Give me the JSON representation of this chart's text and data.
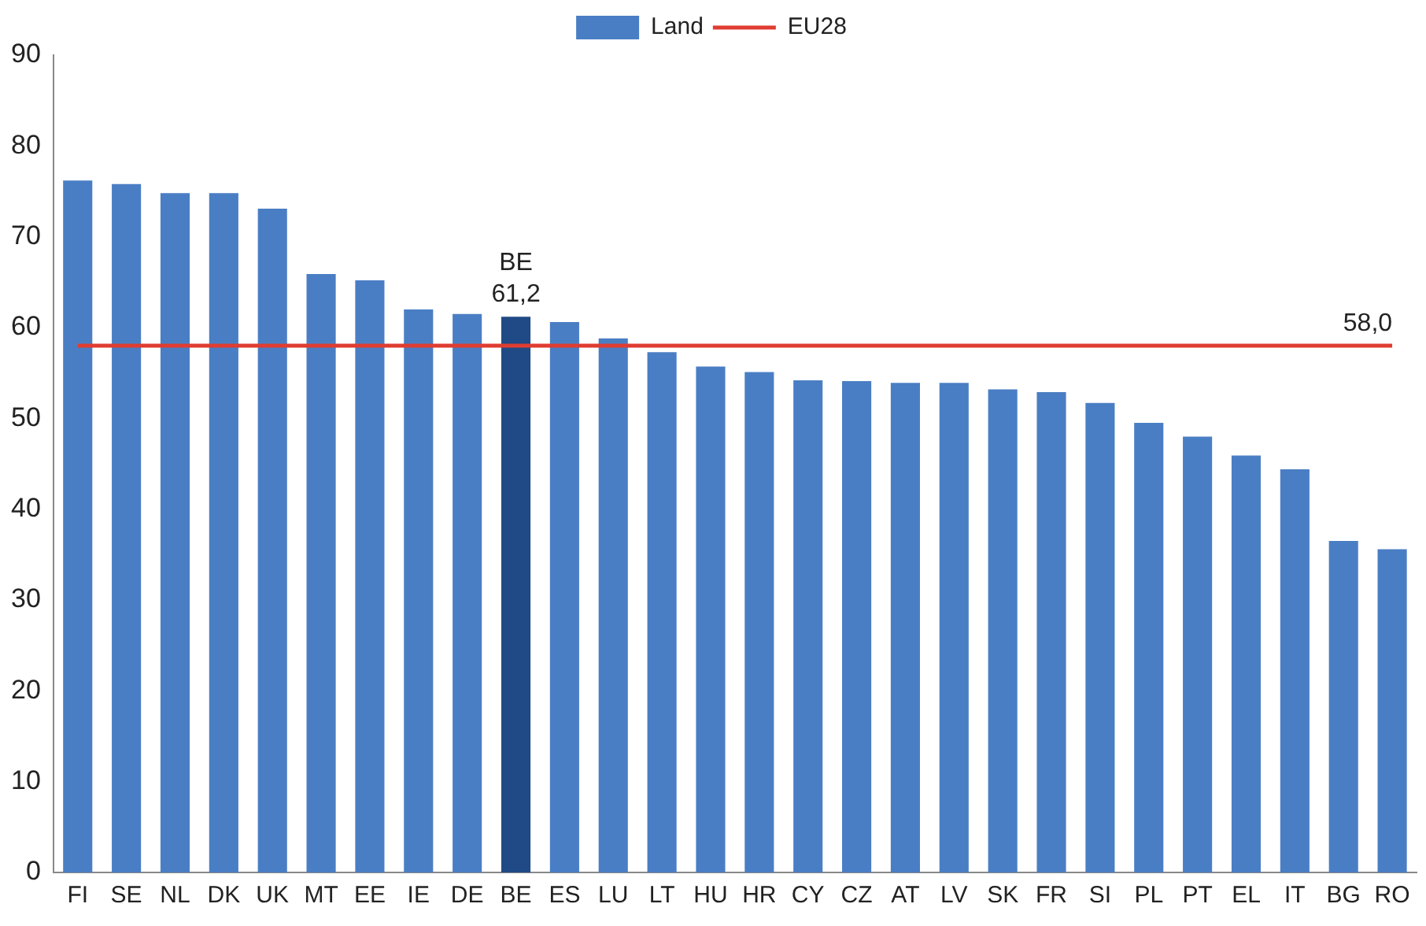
{
  "chart_data": {
    "type": "bar",
    "categories": [
      "FI",
      "SE",
      "NL",
      "DK",
      "UK",
      "MT",
      "EE",
      "IE",
      "DE",
      "BE",
      "ES",
      "LU",
      "LT",
      "HU",
      "HR",
      "CY",
      "CZ",
      "AT",
      "LV",
      "SK",
      "FR",
      "SI",
      "PL",
      "PT",
      "EL",
      "IT",
      "BG",
      "RO"
    ],
    "series": [
      {
        "name": "Land",
        "colors": [
          "#4a7ec4",
          "#4a7ec4",
          "#4a7ec4",
          "#4a7ec4",
          "#4a7ec4",
          "#4a7ec4",
          "#4a7ec4",
          "#4a7ec4",
          "#4a7ec4",
          "#1f4a85",
          "#4a7ec4",
          "#4a7ec4",
          "#4a7ec4",
          "#4a7ec4",
          "#4a7ec4",
          "#4a7ec4",
          "#4a7ec4",
          "#4a7ec4",
          "#4a7ec4",
          "#4a7ec4",
          "#4a7ec4",
          "#4a7ec4",
          "#4a7ec4",
          "#4a7ec4",
          "#4a7ec4",
          "#4a7ec4",
          "#4a7ec4",
          "#4a7ec4"
        ],
        "values": [
          76.2,
          75.8,
          74.8,
          74.8,
          73.1,
          65.9,
          65.2,
          62.0,
          61.5,
          61.2,
          60.6,
          58.8,
          57.3,
          55.7,
          55.1,
          54.2,
          54.1,
          53.9,
          53.9,
          53.2,
          52.9,
          51.7,
          49.5,
          48.0,
          45.9,
          44.4,
          36.5,
          35.6
        ],
        "value_labels": [
          null,
          null,
          null,
          null,
          null,
          null,
          null,
          null,
          null,
          "61,2",
          null,
          null,
          null,
          null,
          null,
          null,
          null,
          null,
          null,
          null,
          null,
          null,
          null,
          null,
          null,
          null,
          null,
          null
        ]
      },
      {
        "name": "EU28",
        "type": "line",
        "color": "#e03c31",
        "values": [
          58,
          58,
          58,
          58,
          58,
          58,
          58,
          58,
          58,
          58,
          58,
          58,
          58,
          58,
          58,
          58,
          58,
          58,
          58,
          58,
          58,
          58,
          58,
          58,
          58,
          58,
          58,
          58
        ],
        "value_labels": [
          null,
          null,
          null,
          null,
          null,
          null,
          null,
          null,
          null,
          null,
          null,
          null,
          null,
          null,
          null,
          null,
          null,
          null,
          null,
          null,
          null,
          null,
          null,
          null,
          null,
          null,
          null,
          "58,0"
        ]
      }
    ],
    "annotations": [
      {
        "text": "BE",
        "x": "BE",
        "y": 61.2
      }
    ],
    "ylim": [
      0,
      90
    ],
    "yticks": [
      0,
      10,
      20,
      30,
      40,
      50,
      60,
      70,
      80,
      90
    ],
    "grid": false,
    "legend": "top",
    "marker": "none"
  }
}
